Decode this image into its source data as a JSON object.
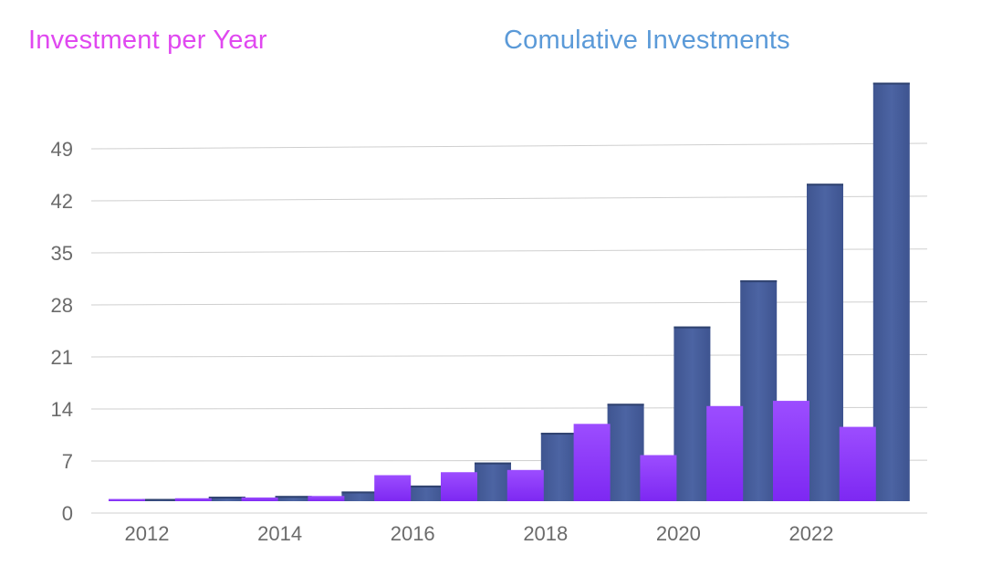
{
  "chart_data": {
    "type": "bar",
    "title": "",
    "xlabel": "",
    "ylabel": "",
    "ylim": [
      0,
      57
    ],
    "yticks": [
      0,
      7,
      14,
      21,
      28,
      35,
      42,
      49
    ],
    "x_tick_labels": [
      "2012",
      "2014",
      "2016",
      "2018",
      "2020",
      "2022"
    ],
    "categories": [
      "2012",
      "2013",
      "2014",
      "2015",
      "2016",
      "2017",
      "2018",
      "2019",
      "2020",
      "2021",
      "2022",
      "2023"
    ],
    "series": [
      {
        "name": "Investment per Year",
        "color": "#8a3cff",
        "values": [
          0.3,
          0.4,
          0.5,
          0.7,
          3.5,
          3.9,
          4.2,
          10.4,
          6.2,
          12.8,
          13.5,
          10.0
        ]
      },
      {
        "name": "Comulative Investments",
        "color": "#4a62a0",
        "values": [
          0.3,
          0.6,
          0.7,
          1.3,
          2.1,
          5.2,
          9.2,
          13.1,
          23.5,
          29.7,
          42.7,
          56.3
        ]
      }
    ],
    "legend": {
      "yearly_label": "Investment per Year",
      "yearly_color": "#e048f0",
      "cumulative_label": "Comulative Investments",
      "cumulative_color": "#5b9ad8",
      "placement": "top"
    },
    "grid": true
  }
}
